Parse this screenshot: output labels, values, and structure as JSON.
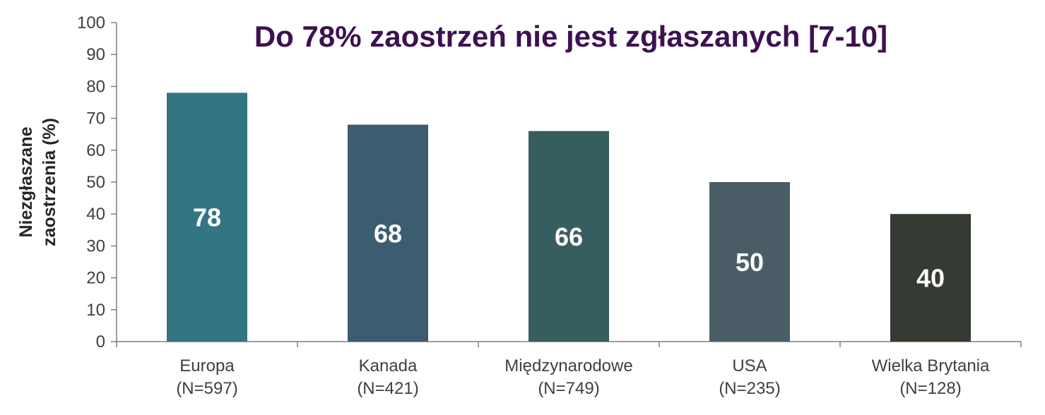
{
  "chart_data": {
    "type": "bar",
    "title": "Do 78% zaostrzeń nie jest zgłaszanych [7-10]",
    "ylabel_lines": [
      "Niezgłaszane",
      "zaostrzenia (%)"
    ],
    "ylim": [
      0,
      100
    ],
    "yticks": [
      0,
      10,
      20,
      30,
      40,
      50,
      60,
      70,
      80,
      90,
      100
    ],
    "categories": [
      {
        "name": "Europa",
        "n": "(N=597)"
      },
      {
        "name": "Kanada",
        "n": "(N=421)"
      },
      {
        "name": "Międzynarodowe",
        "n": "(N=749)"
      },
      {
        "name": "USA",
        "n": "(N=235)"
      },
      {
        "name": "Wielka Brytania",
        "n": "(N=128)"
      }
    ],
    "values": [
      78,
      68,
      66,
      50,
      40
    ],
    "data_labels": [
      "78",
      "68",
      "66",
      "50",
      "40"
    ],
    "bar_colors": [
      "#337583",
      "#3c5c70",
      "#375e5e",
      "#4a5d67",
      "#353a33"
    ],
    "grid": false,
    "legend": "none"
  }
}
